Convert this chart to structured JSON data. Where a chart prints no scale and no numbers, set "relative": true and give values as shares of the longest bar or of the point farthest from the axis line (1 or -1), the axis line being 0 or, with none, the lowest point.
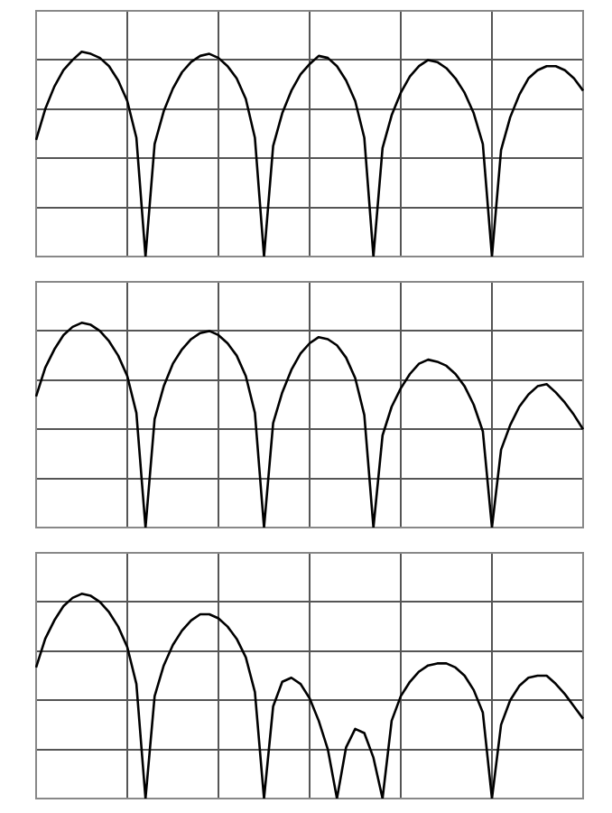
{
  "chart_data": [
    {
      "type": "line",
      "relative": true,
      "grid": true,
      "marker": "none",
      "categories": [
        null,
        null,
        null,
        null,
        null,
        null,
        null,
        null,
        null,
        null,
        null,
        null,
        null,
        null,
        null,
        null,
        null,
        null,
        null,
        null,
        null,
        null,
        null,
        null,
        null,
        null,
        null,
        null,
        null,
        null,
        null,
        null,
        null,
        null,
        null,
        null,
        null,
        null,
        null,
        null,
        null,
        null,
        null,
        null,
        null,
        null,
        null,
        null,
        null,
        null,
        null,
        null,
        null,
        null,
        null,
        null,
        null,
        null,
        null,
        null,
        null
      ],
      "series": [
        {
          "color": "#000000",
          "values": [
            0.57,
            0.72,
            0.83,
            0.91,
            0.96,
            1.0,
            0.99,
            0.97,
            0.93,
            0.86,
            0.76,
            0.58,
            0,
            0.55,
            0.71,
            0.82,
            0.9,
            0.95,
            0.98,
            0.99,
            0.97,
            0.93,
            0.87,
            0.77,
            0.58,
            0,
            0.54,
            0.7,
            0.81,
            0.89,
            0.94,
            0.98,
            0.97,
            0.93,
            0.86,
            0.76,
            0.58,
            0,
            0.53,
            0.69,
            0.8,
            0.88,
            0.93,
            0.96,
            0.95,
            0.92,
            0.87,
            0.8,
            0.7,
            0.55,
            0,
            0.52,
            0.68,
            0.79,
            0.87,
            0.91,
            0.93,
            0.93,
            0.91,
            0.87,
            0.81
          ]
        }
      ]
    },
    {
      "type": "line",
      "relative": true,
      "grid": true,
      "marker": "none",
      "categories": [
        null,
        null,
        null,
        null,
        null,
        null,
        null,
        null,
        null,
        null,
        null,
        null,
        null,
        null,
        null,
        null,
        null,
        null,
        null,
        null,
        null,
        null,
        null,
        null,
        null,
        null,
        null,
        null,
        null,
        null,
        null,
        null,
        null,
        null,
        null,
        null,
        null,
        null,
        null,
        null,
        null,
        null,
        null,
        null,
        null,
        null,
        null,
        null,
        null,
        null,
        null,
        null,
        null,
        null,
        null,
        null,
        null,
        null,
        null,
        null,
        null
      ],
      "series": [
        {
          "color": "#000000",
          "values": [
            0.64,
            0.78,
            0.87,
            0.94,
            0.98,
            1.0,
            0.99,
            0.96,
            0.91,
            0.84,
            0.74,
            0.56,
            0,
            0.53,
            0.69,
            0.8,
            0.87,
            0.92,
            0.95,
            0.96,
            0.94,
            0.9,
            0.84,
            0.74,
            0.56,
            0,
            0.51,
            0.66,
            0.77,
            0.85,
            0.9,
            0.93,
            0.92,
            0.89,
            0.83,
            0.73,
            0.55,
            0,
            0.45,
            0.59,
            0.68,
            0.75,
            0.8,
            0.82,
            0.81,
            0.79,
            0.75,
            0.69,
            0.6,
            0.47,
            0,
            0.38,
            0.5,
            0.59,
            0.65,
            0.69,
            0.7,
            0.66,
            0.61,
            0.55,
            0.48
          ]
        }
      ]
    },
    {
      "type": "line",
      "relative": true,
      "grid": true,
      "marker": "none",
      "categories": [
        null,
        null,
        null,
        null,
        null,
        null,
        null,
        null,
        null,
        null,
        null,
        null,
        null,
        null,
        null,
        null,
        null,
        null,
        null,
        null,
        null,
        null,
        null,
        null,
        null,
        null,
        null,
        null,
        null,
        null,
        null,
        null,
        null,
        null,
        null,
        null,
        null,
        null,
        null,
        null,
        null,
        null,
        null,
        null,
        null,
        null,
        null,
        null,
        null,
        null,
        null,
        null,
        null,
        null,
        null,
        null,
        null,
        null,
        null,
        null,
        null
      ],
      "series": [
        {
          "color": "#000000",
          "values": [
            0.64,
            0.78,
            0.87,
            0.94,
            0.98,
            1.0,
            0.99,
            0.96,
            0.91,
            0.84,
            0.74,
            0.56,
            0,
            0.5,
            0.65,
            0.75,
            0.82,
            0.87,
            0.9,
            0.9,
            0.88,
            0.84,
            0.78,
            0.69,
            0.52,
            0,
            0.45,
            0.57,
            0.59,
            0.56,
            0.49,
            0.38,
            0.24,
            0,
            0.25,
            0.34,
            0.32,
            0.2,
            0,
            0.38,
            0.5,
            0.57,
            0.62,
            0.65,
            0.66,
            0.66,
            0.64,
            0.6,
            0.53,
            0.42,
            0,
            0.36,
            0.48,
            0.55,
            0.59,
            0.6,
            0.6,
            0.56,
            0.51,
            0.45,
            0.39
          ]
        }
      ]
    }
  ]
}
